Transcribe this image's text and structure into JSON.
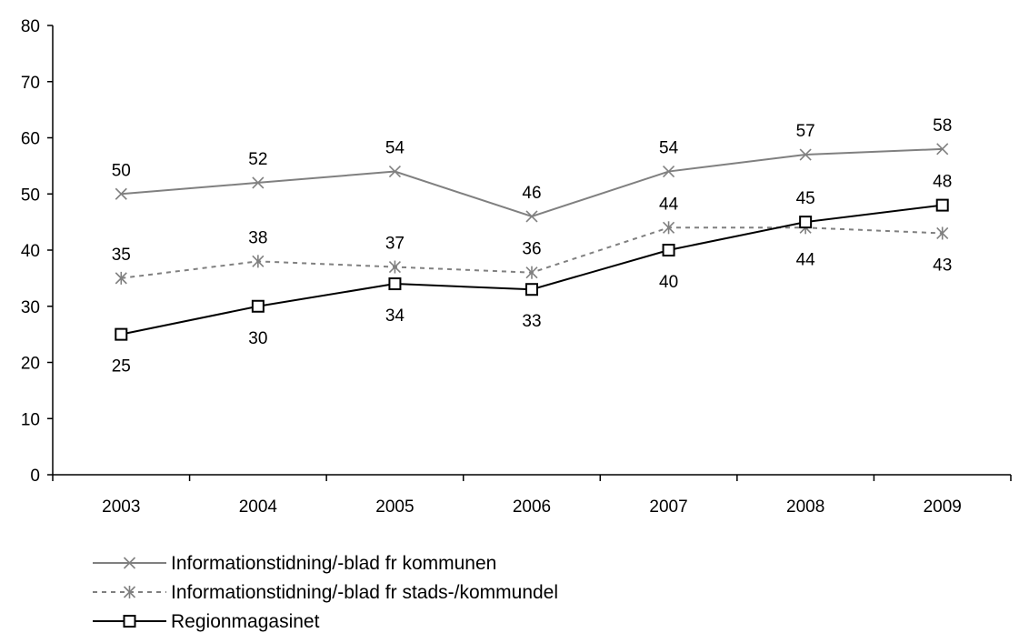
{
  "chart_data": {
    "type": "line",
    "title": "",
    "xlabel": "",
    "ylabel": "",
    "categories": [
      "2003",
      "2004",
      "2005",
      "2006",
      "2007",
      "2008",
      "2009"
    ],
    "ylim": [
      0,
      80
    ],
    "yticks": [
      "0",
      "10",
      "20",
      "30",
      "40",
      "50",
      "60",
      "70",
      "80"
    ],
    "grid": false,
    "legend_position": "bottom-left",
    "series": [
      {
        "name": "Informationstidning/-blad fr kommunen",
        "values": [
          50,
          52,
          54,
          46,
          54,
          57,
          58
        ],
        "labels": [
          "50",
          "52",
          "54",
          "46",
          "54",
          "57",
          "58"
        ],
        "color": "#808080",
        "line_style": "solid",
        "marker": "x",
        "label_position": [
          "above",
          "above",
          "above",
          "above",
          "above",
          "above",
          "above"
        ]
      },
      {
        "name": "Informationstidning/-blad fr stads-/kommundel",
        "values": [
          35,
          38,
          37,
          36,
          44,
          44,
          43
        ],
        "labels": [
          "35",
          "38",
          "37",
          "36",
          "44",
          "44",
          "43"
        ],
        "color": "#808080",
        "line_style": "dashed",
        "marker": "asterisk",
        "label_position": [
          "above",
          "above",
          "above",
          "above",
          "above",
          "below",
          "below"
        ]
      },
      {
        "name": "Regionmagasinet",
        "values": [
          25,
          30,
          34,
          33,
          40,
          45,
          48
        ],
        "labels": [
          "25",
          "30",
          "34",
          "33",
          "40",
          "45",
          "48"
        ],
        "color": "#000000",
        "line_style": "solid",
        "marker": "square",
        "label_position": [
          "below",
          "below",
          "below",
          "below",
          "below",
          "above",
          "above"
        ]
      }
    ]
  }
}
